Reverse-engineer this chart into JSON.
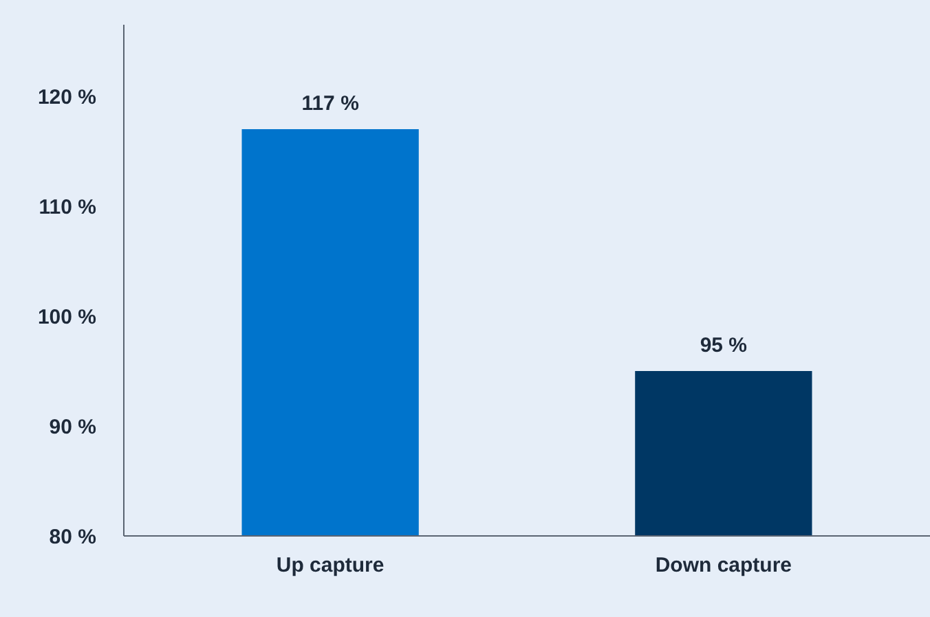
{
  "chart_data": {
    "type": "bar",
    "categories": [
      "Up capture",
      "Down capture"
    ],
    "values": [
      117,
      95
    ],
    "colors": [
      "#0074cc",
      "#003764"
    ],
    "value_labels": [
      "117 %",
      "95 %"
    ],
    "ylim": [
      80,
      126.5
    ],
    "yticks": [
      {
        "value": 80,
        "label": "80 %"
      },
      {
        "value": 90,
        "label": "90 %"
      },
      {
        "value": 100,
        "label": "100 %"
      },
      {
        "value": 110,
        "label": "110 %"
      },
      {
        "value": 120,
        "label": "120 %"
      }
    ],
    "grid": false
  }
}
